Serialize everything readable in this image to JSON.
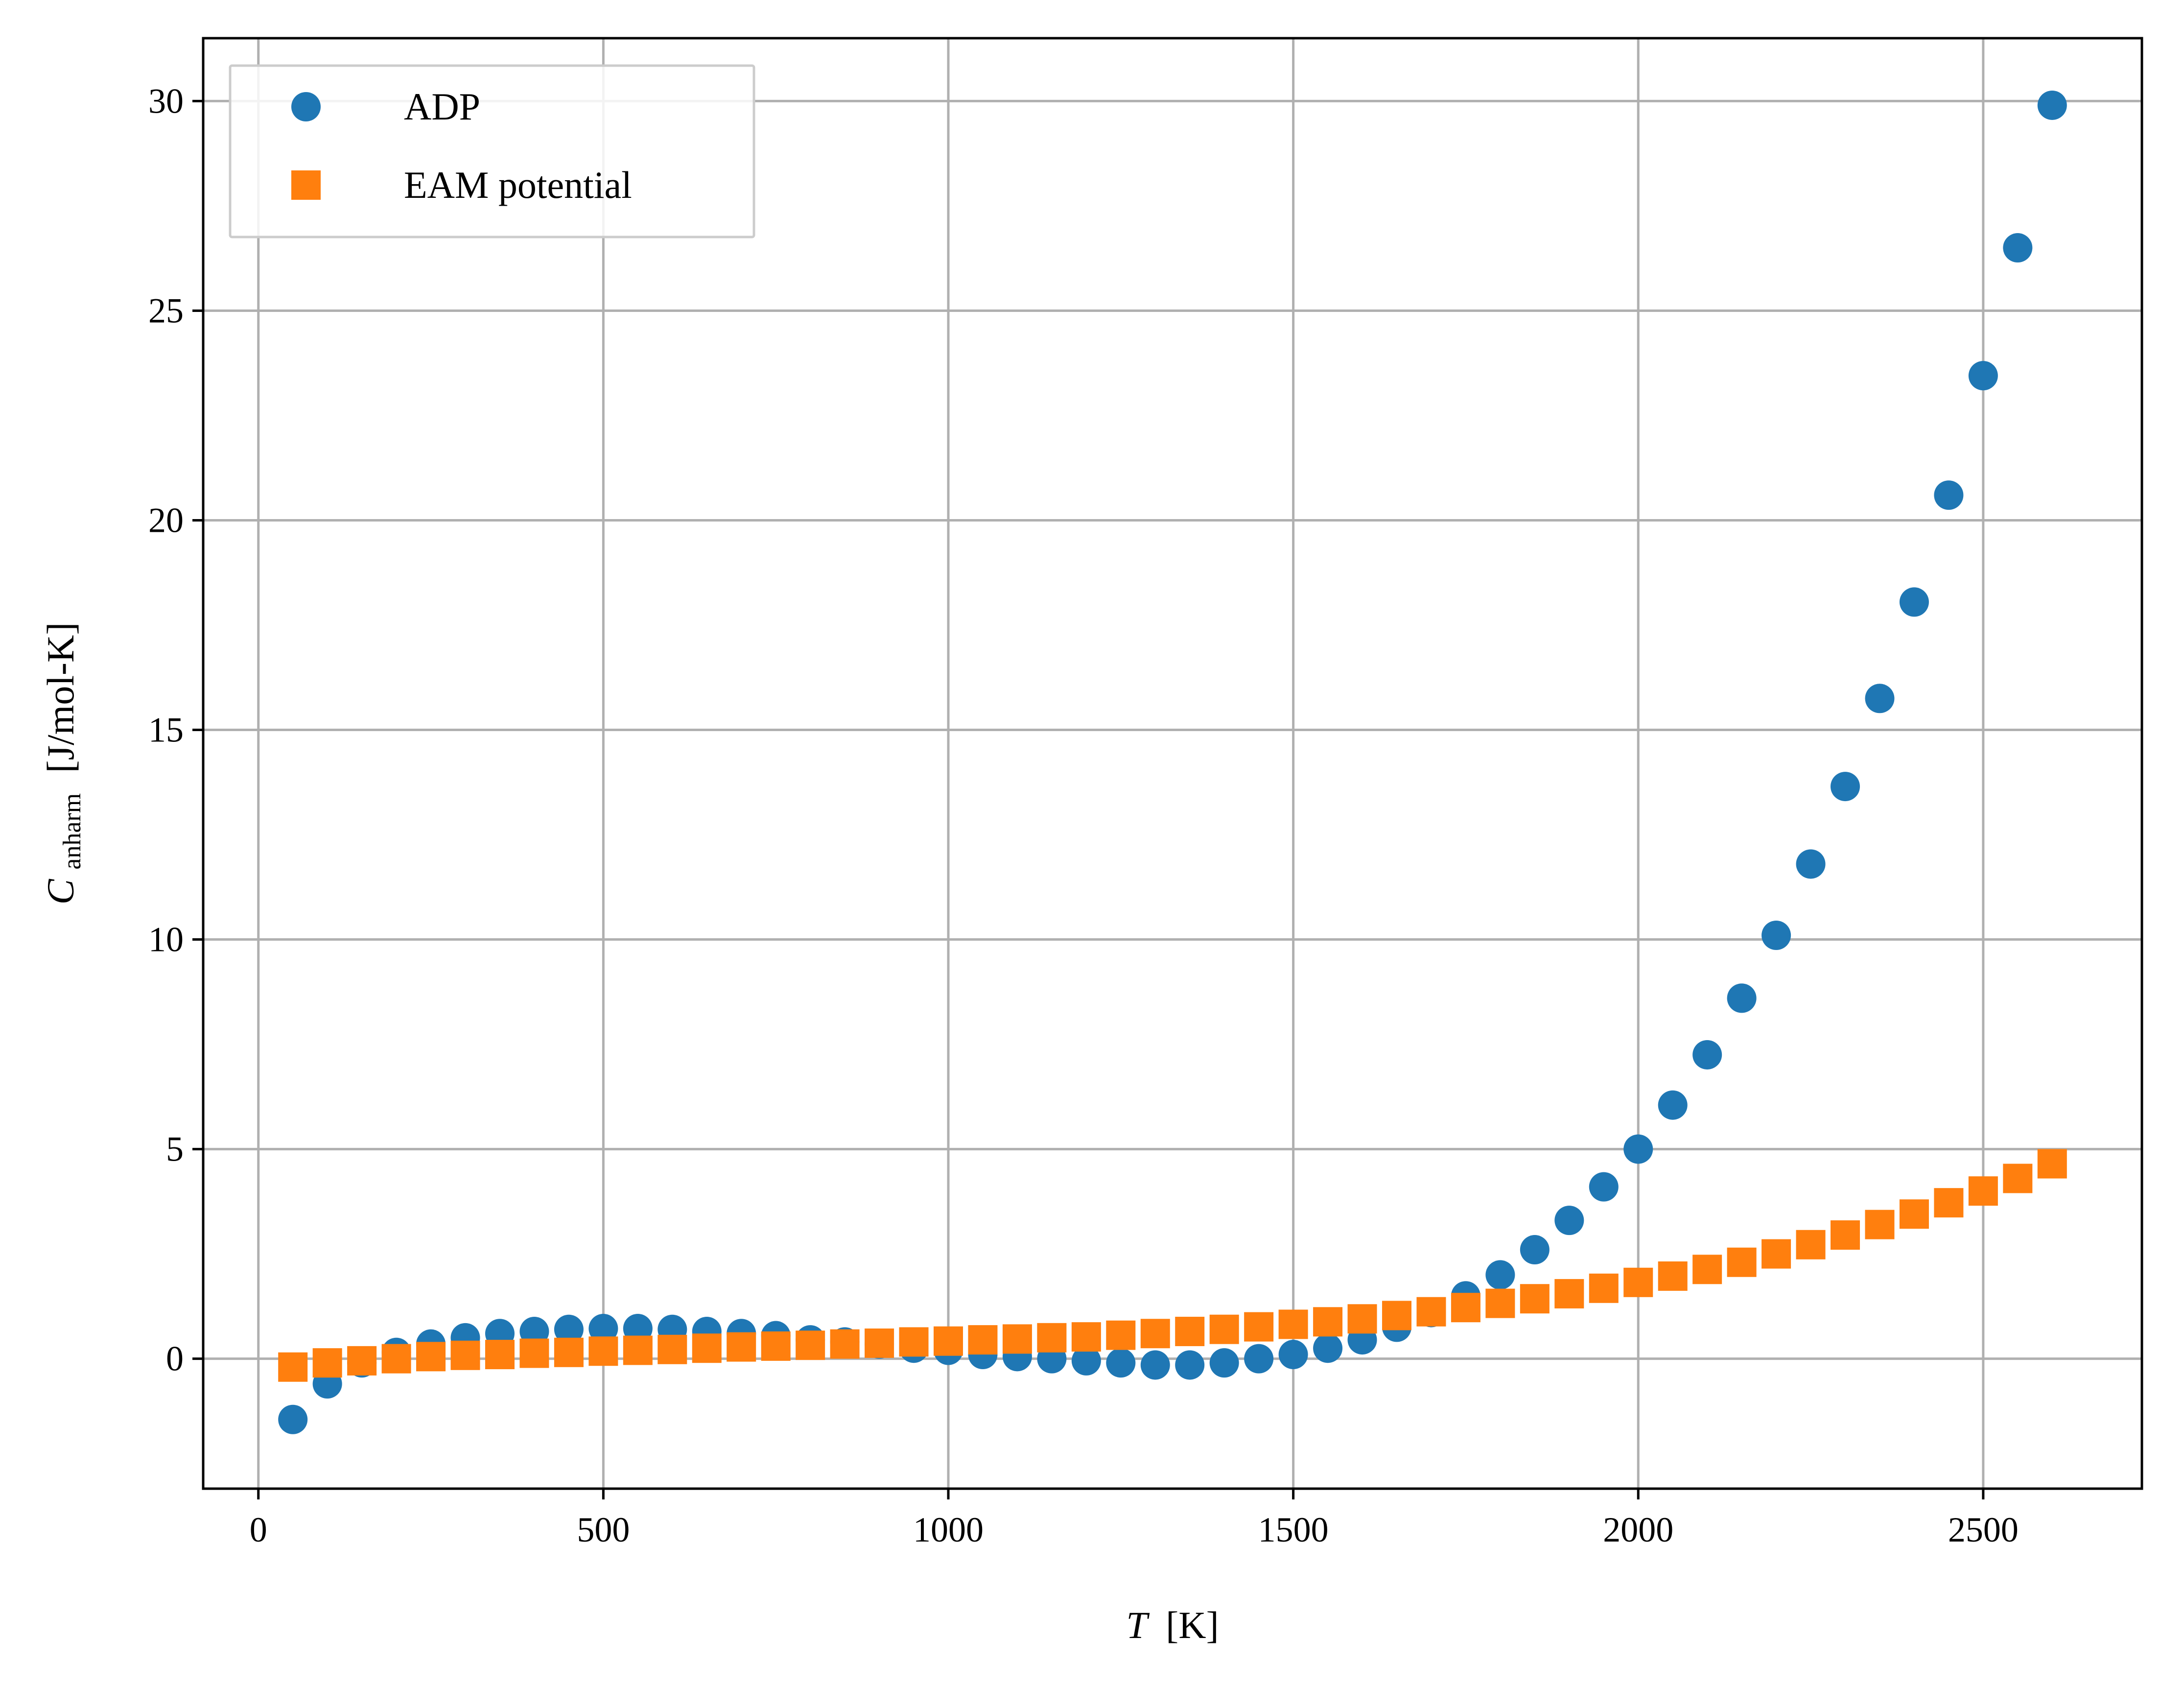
{
  "chart_data": {
    "type": "scatter",
    "xlabel_italic": "T",
    "xlabel_unit": "[K]",
    "ylabel_main": "C",
    "ylabel_sub": "anharm",
    "ylabel_unit": "[J/mol-K]",
    "xlim": [
      -80,
      2730
    ],
    "ylim": [
      -3.1,
      31.5
    ],
    "xticks": [
      0,
      500,
      1000,
      1500,
      2000,
      2500
    ],
    "yticks": [
      0,
      5,
      10,
      15,
      20,
      25,
      30
    ],
    "grid": true,
    "legend_position": "top-left",
    "series": [
      {
        "name": "ADP",
        "marker": "circle",
        "color": "#1f77b4",
        "x": [
          50,
          100,
          150,
          200,
          250,
          300,
          350,
          400,
          450,
          500,
          550,
          600,
          650,
          700,
          750,
          800,
          850,
          900,
          950,
          1000,
          1050,
          1100,
          1150,
          1200,
          1250,
          1300,
          1350,
          1400,
          1450,
          1500,
          1550,
          1600,
          1650,
          1700,
          1750,
          1800,
          1850,
          1900,
          1950,
          2000,
          2050,
          2100,
          2150,
          2200,
          2250,
          2300,
          2350,
          2400,
          2450,
          2500,
          2550,
          2600
        ],
        "y": [
          -1.45,
          -0.6,
          -0.1,
          0.15,
          0.35,
          0.5,
          0.6,
          0.65,
          0.7,
          0.72,
          0.72,
          0.7,
          0.65,
          0.6,
          0.55,
          0.45,
          0.4,
          0.35,
          0.25,
          0.2,
          0.1,
          0.05,
          0.0,
          -0.05,
          -0.1,
          -0.15,
          -0.15,
          -0.1,
          0.0,
          0.1,
          0.25,
          0.45,
          0.75,
          1.1,
          1.5,
          2.0,
          2.6,
          3.3,
          4.1,
          5.0,
          6.05,
          7.25,
          8.6,
          10.1,
          11.8,
          13.65,
          15.75,
          18.05,
          20.6,
          23.45,
          26.5,
          29.9
        ]
      },
      {
        "name": "EAM potential",
        "marker": "square",
        "color": "#ff7f0e",
        "x": [
          50,
          100,
          150,
          200,
          250,
          300,
          350,
          400,
          450,
          500,
          550,
          600,
          650,
          700,
          750,
          800,
          850,
          900,
          950,
          1000,
          1050,
          1100,
          1150,
          1200,
          1250,
          1300,
          1350,
          1400,
          1450,
          1500,
          1550,
          1600,
          1650,
          1700,
          1750,
          1800,
          1850,
          1900,
          1950,
          2000,
          2050,
          2100,
          2150,
          2200,
          2250,
          2300,
          2350,
          2400,
          2450,
          2500,
          2550,
          2600
        ],
        "y": [
          -0.2,
          -0.1,
          -0.05,
          0.0,
          0.05,
          0.08,
          0.1,
          0.13,
          0.15,
          0.18,
          0.2,
          0.22,
          0.25,
          0.28,
          0.3,
          0.32,
          0.35,
          0.37,
          0.4,
          0.42,
          0.45,
          0.47,
          0.5,
          0.52,
          0.56,
          0.6,
          0.65,
          0.7,
          0.76,
          0.82,
          0.88,
          0.95,
          1.03,
          1.12,
          1.22,
          1.32,
          1.43,
          1.55,
          1.68,
          1.82,
          1.97,
          2.13,
          2.3,
          2.5,
          2.72,
          2.95,
          3.2,
          3.45,
          3.72,
          4.0,
          4.3,
          4.65
        ]
      }
    ]
  }
}
